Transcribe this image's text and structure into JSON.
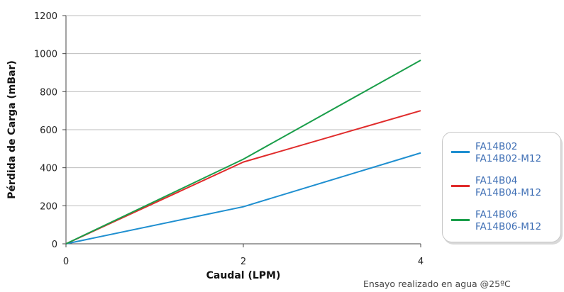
{
  "chart_data": {
    "type": "line",
    "xlabel": "Caudal (LPM)",
    "ylabel": "Pérdida de Carga (mBar)",
    "xlim": [
      0,
      4
    ],
    "ylim": [
      0,
      1200
    ],
    "x_ticks": [
      "0",
      "2",
      "4"
    ],
    "y_ticks": [
      "0",
      "200",
      "400",
      "600",
      "800",
      "1000",
      "1200"
    ],
    "grid": "horizontal",
    "legend_position": "right",
    "series": [
      {
        "name": "FA14B02",
        "name_line2": "FA14B02-M12",
        "color": "#1f8fd0",
        "x": [
          0,
          2,
          4
        ],
        "y": [
          0,
          195,
          478
        ]
      },
      {
        "name": "FA14B04",
        "name_line2": "FA14B04-M12",
        "color": "#e02b2b",
        "x": [
          0,
          2,
          4
        ],
        "y": [
          0,
          430,
          700
        ]
      },
      {
        "name": "FA14B06",
        "name_line2": "FA14B06-M12",
        "color": "#1a9e4a",
        "x": [
          0,
          2,
          4
        ],
        "y": [
          0,
          445,
          965
        ]
      }
    ],
    "annotation": "Ensayo realizado en agua @25ºC"
  }
}
